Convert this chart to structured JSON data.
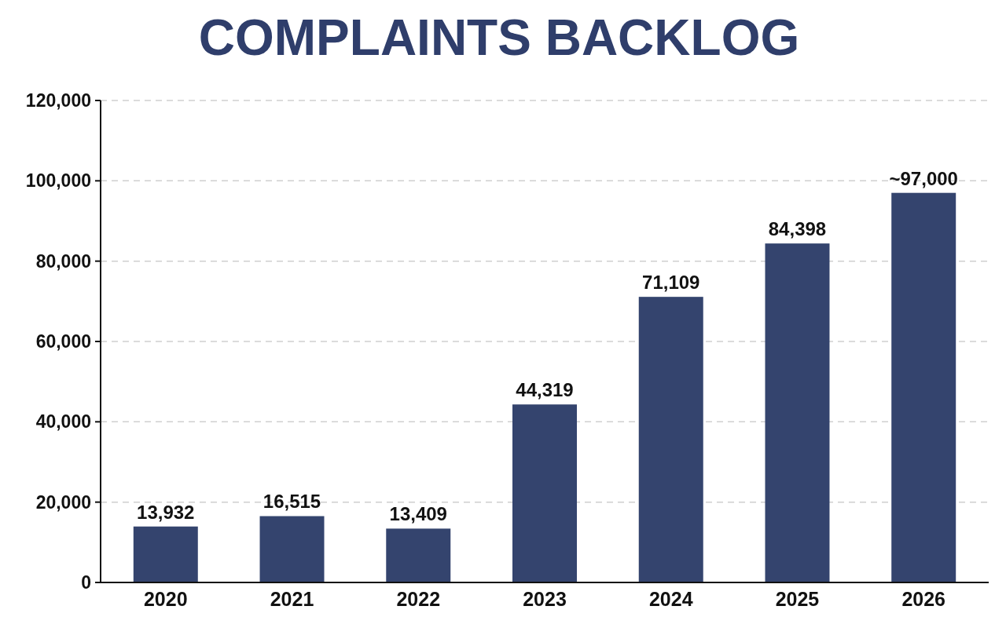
{
  "chart_data": {
    "type": "bar",
    "title": "COMPLAINTS BACKLOG",
    "categories": [
      "2020",
      "2021",
      "2022",
      "2023",
      "2024",
      "2025",
      "2026"
    ],
    "values": [
      13932,
      16515,
      13409,
      44319,
      71109,
      84398,
      97000
    ],
    "value_labels": [
      "13,932",
      "16,515",
      "13,409",
      "44,319",
      "71,109",
      "84,398",
      "~97,000"
    ],
    "color": "#34446e",
    "ylim": [
      0,
      120000
    ],
    "yticks": [
      0,
      {
        "value": 20000,
        "label": "20,000"
      },
      {
        "value": 40000,
        "label": "40,000"
      },
      {
        "value": 60000,
        "label": "60,000"
      },
      {
        "value": 80000,
        "label": "80,000"
      },
      {
        "value": 100000,
        "label": "100,000"
      },
      {
        "value": 120000,
        "label": "120,000"
      }
    ],
    "grid": "y"
  }
}
